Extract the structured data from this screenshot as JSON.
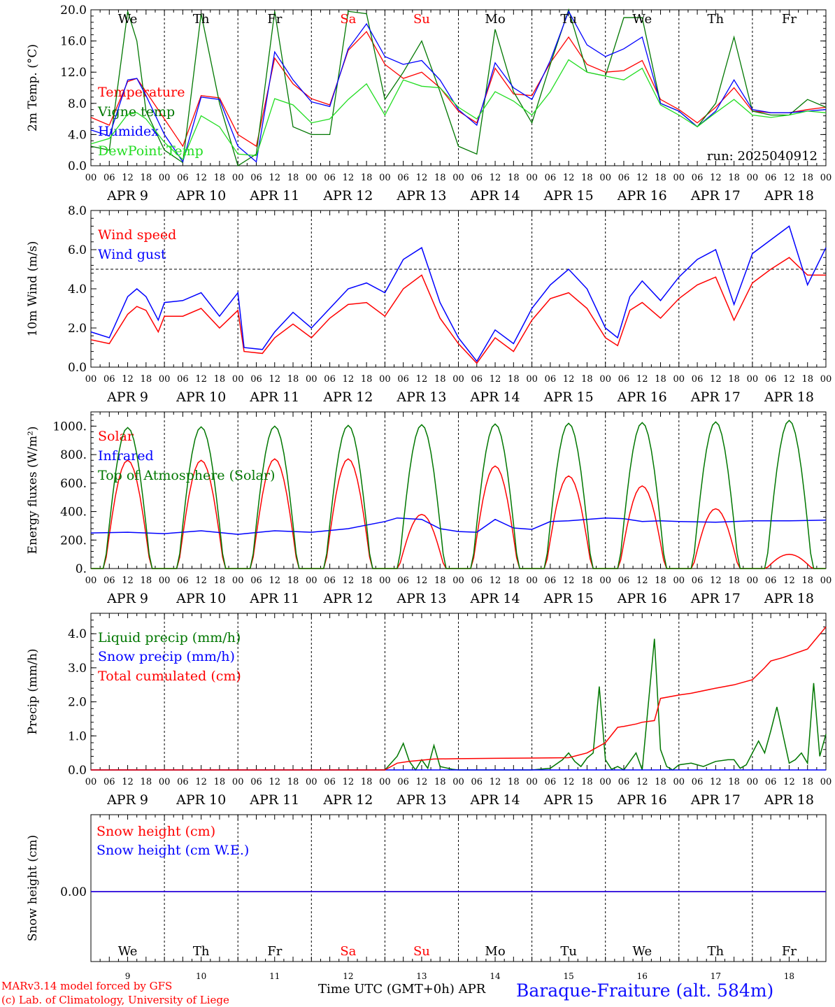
{
  "footer": {
    "credit_1": "MARv3.14 model forced by GFS",
    "credit_2": "(c) Lab. of Climatology, University of Liege",
    "xlabel": "Time UTC (GMT+0h)",
    "month": "APR",
    "station": "Baraque-Fraiture (alt. 584m)"
  },
  "colors": {
    "red": "#ff0000",
    "blue": "#0000ff",
    "dark_green": "#007700",
    "light_green": "#22dd22",
    "black": "#000000"
  },
  "time_axis": {
    "hours": [
      "00",
      "06",
      "12",
      "18"
    ],
    "last_hour": "00",
    "days": [
      "APR  9",
      "APR 10",
      "APR 11",
      "APR 12",
      "APR 13",
      "APR 14",
      "APR 15",
      "APR 16",
      "APR 17",
      "APR 18"
    ],
    "weekdays": [
      "We",
      "Th",
      "Fr",
      "Sa",
      "Su",
      "Mo",
      "Tu",
      "We",
      "Th",
      "Fr"
    ],
    "weekend_days": [
      "Sa",
      "Su"
    ],
    "day_numbers": [
      "9",
      "10",
      "11",
      "12",
      "13",
      "14",
      "15",
      "16",
      "17",
      "18"
    ]
  },
  "chart_data": [
    {
      "type": "line",
      "ylabel": "2m Temp. (°C)",
      "ylim": [
        0,
        20
      ],
      "yticks": [
        "0.0",
        "4.0",
        "8.0",
        "12.0",
        "16.0",
        "20.0"
      ],
      "annotation": "run: 2025040912",
      "x_unit": "hours since APR 9 00 UTC",
      "series": [
        {
          "name": "Temperature",
          "color": "#ff0000",
          "x": [
            0,
            6,
            12,
            15,
            18,
            24,
            30,
            36,
            42,
            48,
            54,
            60,
            66,
            72,
            78,
            84,
            90,
            96,
            102,
            108,
            114,
            120,
            126,
            132,
            138,
            144,
            150,
            156,
            162,
            168,
            174,
            180,
            186,
            192,
            198,
            204,
            210,
            216,
            222,
            228,
            234,
            240
          ],
          "y": [
            6.2,
            5.2,
            10.8,
            11.2,
            9.5,
            6.0,
            2.5,
            9.0,
            8.7,
            4.0,
            2.5,
            13.8,
            10.5,
            8.6,
            7.8,
            14.8,
            17.2,
            13.0,
            11.2,
            12.0,
            10.0,
            7.0,
            5.5,
            12.5,
            9.2,
            9.0,
            13.2,
            16.5,
            13.0,
            12.0,
            12.2,
            13.5,
            8.5,
            7.2,
            5.5,
            7.5,
            10.0,
            7.0,
            6.8,
            6.8,
            7.2,
            7.5
          ]
        },
        {
          "name": "Vigne temp",
          "color": "#007700",
          "x": [
            0,
            6,
            12,
            15,
            18,
            24,
            30,
            36,
            42,
            48,
            54,
            60,
            66,
            72,
            78,
            84,
            90,
            96,
            102,
            108,
            114,
            120,
            126,
            132,
            138,
            144,
            150,
            156,
            162,
            168,
            174,
            180,
            186,
            192,
            198,
            204,
            210,
            216,
            222,
            228,
            234,
            240
          ],
          "y": [
            2.5,
            2.0,
            19.8,
            16.0,
            7.0,
            2.0,
            0.4,
            19.5,
            8.0,
            0.0,
            1.5,
            19.8,
            5.0,
            4.0,
            4.0,
            19.8,
            19.5,
            8.5,
            12.0,
            16.0,
            9.5,
            2.5,
            1.5,
            17.5,
            9.5,
            5.5,
            13.0,
            20.0,
            12.0,
            11.5,
            19.0,
            19.0,
            8.0,
            7.0,
            5.0,
            8.0,
            16.5,
            7.0,
            6.5,
            6.5,
            8.5,
            7.5
          ]
        },
        {
          "name": "Humidex",
          "color": "#0000ff",
          "x": [
            0,
            6,
            12,
            15,
            18,
            24,
            30,
            36,
            42,
            48,
            54,
            60,
            66,
            72,
            78,
            84,
            90,
            96,
            102,
            108,
            114,
            120,
            126,
            132,
            138,
            144,
            150,
            156,
            162,
            168,
            174,
            180,
            186,
            192,
            198,
            204,
            210,
            216,
            222,
            228,
            234,
            240
          ],
          "y": [
            4.6,
            3.8,
            11.0,
            11.2,
            9.0,
            4.0,
            0.5,
            8.8,
            8.5,
            2.5,
            0.5,
            14.6,
            11.0,
            8.2,
            7.6,
            15.0,
            18.2,
            14.0,
            13.0,
            13.5,
            11.0,
            7.2,
            5.2,
            13.2,
            10.0,
            8.5,
            13.5,
            19.8,
            15.5,
            14.0,
            15.0,
            16.5,
            8.0,
            7.0,
            5.0,
            7.0,
            11.0,
            7.2,
            6.8,
            6.8,
            7.0,
            7.2
          ]
        },
        {
          "name": "DewPoint Temp",
          "color": "#22dd22",
          "x": [
            0,
            6,
            12,
            15,
            18,
            24,
            30,
            36,
            42,
            48,
            54,
            60,
            66,
            72,
            78,
            84,
            90,
            96,
            102,
            108,
            114,
            120,
            126,
            132,
            138,
            144,
            150,
            156,
            162,
            168,
            174,
            180,
            186,
            192,
            198,
            204,
            210,
            216,
            222,
            228,
            234,
            240
          ],
          "y": [
            2.8,
            3.5,
            6.6,
            6.8,
            6.0,
            3.0,
            0.8,
            6.4,
            5.0,
            1.5,
            1.3,
            8.6,
            7.8,
            5.5,
            6.0,
            8.5,
            10.5,
            6.5,
            11.0,
            10.2,
            10.0,
            7.5,
            6.0,
            9.5,
            8.3,
            6.5,
            9.5,
            13.6,
            12.0,
            11.5,
            11.0,
            12.5,
            7.8,
            6.5,
            5.0,
            6.8,
            8.5,
            6.5,
            6.2,
            6.5,
            7.0,
            6.8
          ]
        }
      ]
    },
    {
      "type": "line",
      "ylabel": "10m Wind (m/s)",
      "ylim": [
        0,
        8
      ],
      "yticks": [
        "0.0",
        "2.0",
        "4.0",
        "6.0",
        "8.0"
      ],
      "reference_line": 5.0,
      "series": [
        {
          "name": "Wind speed",
          "color": "#ff0000",
          "x": [
            0,
            6,
            12,
            15,
            18,
            22,
            24,
            30,
            36,
            42,
            48,
            50,
            56,
            60,
            66,
            72,
            78,
            84,
            90,
            96,
            102,
            108,
            114,
            120,
            126,
            132,
            138,
            144,
            150,
            156,
            162,
            168,
            172,
            176,
            180,
            186,
            192,
            198,
            204,
            210,
            216,
            222,
            228,
            234,
            240
          ],
          "y": [
            1.4,
            1.2,
            2.7,
            3.1,
            2.9,
            1.8,
            2.6,
            2.6,
            3.0,
            2.0,
            2.9,
            0.8,
            0.7,
            1.5,
            2.2,
            1.5,
            2.5,
            3.2,
            3.3,
            2.6,
            4.0,
            4.7,
            2.5,
            1.2,
            0.2,
            1.5,
            0.8,
            2.4,
            3.5,
            3.8,
            3.0,
            1.5,
            1.1,
            2.9,
            3.3,
            2.5,
            3.5,
            4.2,
            4.6,
            2.4,
            4.3,
            5.0,
            5.6,
            4.7,
            4.7
          ]
        },
        {
          "name": "Wind gust",
          "color": "#0000ff",
          "x": [
            0,
            6,
            12,
            15,
            18,
            22,
            24,
            30,
            36,
            42,
            48,
            50,
            56,
            60,
            66,
            72,
            78,
            84,
            90,
            96,
            102,
            108,
            114,
            120,
            126,
            132,
            138,
            144,
            150,
            156,
            162,
            168,
            172,
            176,
            180,
            186,
            192,
            198,
            204,
            210,
            216,
            222,
            228,
            234,
            240
          ],
          "y": [
            1.8,
            1.5,
            3.6,
            4.0,
            3.6,
            2.4,
            3.3,
            3.4,
            3.8,
            2.6,
            3.8,
            1.0,
            0.9,
            1.8,
            2.8,
            2.0,
            3.0,
            4.0,
            4.3,
            3.8,
            5.5,
            6.1,
            3.3,
            1.5,
            0.3,
            1.9,
            1.2,
            3.0,
            4.2,
            5.0,
            4.0,
            2.0,
            1.5,
            3.6,
            4.4,
            3.4,
            4.6,
            5.5,
            6.0,
            3.2,
            5.8,
            6.5,
            7.2,
            4.2,
            6.1
          ]
        }
      ]
    },
    {
      "type": "line",
      "ylabel": "Energy fluxes (W/m²)",
      "ylim": [
        0,
        1100
      ],
      "yticks": [
        "0.",
        "200.",
        "400.",
        "600.",
        "800.",
        "1000."
      ],
      "series": [
        {
          "name": "Solar",
          "color": "#ff0000",
          "shape": "diurnal",
          "peaks": [
            760,
            760,
            770,
            770,
            380,
            720,
            650,
            580,
            420,
            100
          ]
        },
        {
          "name": "Infrared",
          "color": "#0000ff",
          "x": [
            0,
            12,
            24,
            36,
            48,
            60,
            72,
            84,
            96,
            100,
            108,
            114,
            120,
            126,
            132,
            138,
            144,
            150,
            156,
            162,
            168,
            174,
            180,
            186,
            192,
            204,
            216,
            228,
            240
          ],
          "y": [
            250,
            255,
            245,
            265,
            240,
            265,
            255,
            280,
            330,
            355,
            345,
            280,
            260,
            255,
            345,
            285,
            275,
            330,
            335,
            345,
            355,
            350,
            330,
            335,
            330,
            325,
            335,
            335,
            340
          ]
        },
        {
          "name": "Top of Atmosphere (Solar)",
          "color": "#007700",
          "shape": "diurnal",
          "peaks": [
            990,
            995,
            1000,
            1005,
            1010,
            1015,
            1020,
            1025,
            1030,
            1040
          ]
        }
      ]
    },
    {
      "type": "line",
      "ylabel": "Precip (mm/h)",
      "ylim": [
        0,
        4.6
      ],
      "yticks": [
        "0.0",
        "1.0",
        "2.0",
        "3.0",
        "4.0"
      ],
      "series": [
        {
          "name": "Liquid precip (mm/h)",
          "color": "#007700",
          "x": [
            0,
            96,
            100,
            102,
            104,
            106,
            108,
            110,
            112,
            114,
            118,
            120,
            140,
            144,
            150,
            154,
            156,
            158,
            160,
            162,
            164,
            166,
            168,
            170,
            172,
            174,
            178,
            180,
            184,
            186,
            188,
            190,
            192,
            196,
            200,
            204,
            208,
            210,
            212,
            214,
            218,
            220,
            222,
            224,
            228,
            230,
            232,
            234,
            236,
            238,
            240
          ],
          "y": [
            0,
            0,
            0.4,
            0.78,
            0.25,
            0,
            0.3,
            0.05,
            0.72,
            0.1,
            0.02,
            0,
            0,
            0,
            0.05,
            0.3,
            0.5,
            0.25,
            0.1,
            0.35,
            0.5,
            2.45,
            0.3,
            0.02,
            0.1,
            0,
            0.5,
            0.0,
            3.85,
            0.6,
            0.1,
            0.0,
            0.15,
            0.2,
            0.1,
            0.25,
            0.3,
            0.3,
            0.05,
            0.15,
            0.85,
            0.5,
            1.15,
            1.85,
            0.2,
            0.3,
            0.5,
            0.2,
            2.55,
            0.4,
            1.05
          ]
        },
        {
          "name": "Snow precip (mm/h)",
          "color": "#0000ff",
          "x": [
            0,
            240
          ],
          "y": [
            0,
            0
          ]
        },
        {
          "name": "Total cumulated (cm)",
          "color": "#ff0000",
          "x": [
            0,
            96,
            100,
            104,
            112,
            120,
            132,
            144,
            156,
            162,
            168,
            172,
            174,
            178,
            180,
            184,
            186,
            192,
            196,
            204,
            210,
            216,
            220,
            222,
            226,
            234,
            240
          ],
          "y": [
            0,
            0,
            0.2,
            0.25,
            0.32,
            0.33,
            0.34,
            0.35,
            0.36,
            0.5,
            0.8,
            1.25,
            1.28,
            1.35,
            1.4,
            1.45,
            2.1,
            2.2,
            2.25,
            2.4,
            2.5,
            2.65,
            3.0,
            3.2,
            3.3,
            3.55,
            4.2
          ]
        }
      ]
    },
    {
      "type": "line",
      "ylabel": "Snow height (cm)",
      "yticks": [
        "0.00"
      ],
      "series": [
        {
          "name": "Snow height (cm)",
          "color": "#ff0000",
          "x": [
            0,
            240
          ],
          "y": [
            0,
            0
          ]
        },
        {
          "name": "Snow height (cm W.E.)",
          "color": "#0000ff",
          "x": [
            0,
            240
          ],
          "y": [
            0,
            0
          ]
        }
      ]
    }
  ]
}
